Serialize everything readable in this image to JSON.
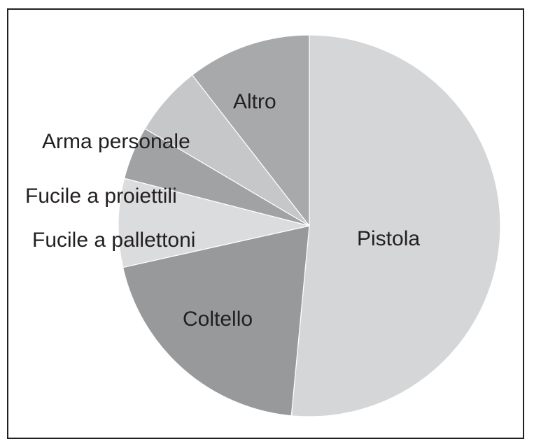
{
  "chart_data": {
    "type": "pie",
    "title": "",
    "slices": [
      {
        "label": "Pistola",
        "value": 51.5,
        "color": "#d4d6d8"
      },
      {
        "label": "Coltello",
        "value": 20.0,
        "color": "#97999b"
      },
      {
        "label": "Fucile a pallettoni",
        "value": 7.5,
        "color": "#dbdcde"
      },
      {
        "label": "Fucile a proiettili",
        "value": 4.5,
        "color": "#a0a2a4"
      },
      {
        "label": "Arma personale",
        "value": 6.0,
        "color": "#c5c7c9"
      },
      {
        "label": "Altro",
        "value": 10.5,
        "color": "#a7a9ab"
      }
    ],
    "start_angle_degrees": 0,
    "direction": "clockwise",
    "legend": "none",
    "frame_border_color": "#231f20"
  }
}
